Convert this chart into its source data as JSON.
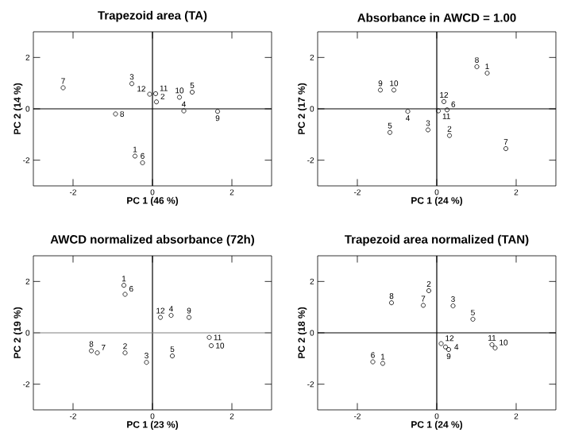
{
  "chart_data": [
    {
      "type": "scatter",
      "title": "Trapezoid area (TA)",
      "xlabel": "PC 1 (46 %)",
      "ylabel": "PC 2 (14 %)",
      "color": "#000000",
      "marker": "circle",
      "xlim": [
        -3,
        3
      ],
      "ylim": [
        -3,
        3
      ],
      "xticks": [
        -2,
        0,
        2
      ],
      "yticks": [
        -2,
        0,
        2
      ],
      "x": [
        -2.25,
        -0.52,
        -0.07,
        0.08,
        0.1,
        0.68,
        1.0,
        0.79,
        1.64,
        -0.93,
        -0.44,
        -0.25
      ],
      "values": [
        0.82,
        0.98,
        0.57,
        0.59,
        0.27,
        0.45,
        0.65,
        -0.08,
        -0.1,
        -0.2,
        -1.84,
        -2.1
      ],
      "ref_lines": [
        {
          "axis": "x",
          "value": 0,
          "color": "#000000"
        },
        {
          "axis": "y",
          "value": 0,
          "color": "#000000"
        }
      ],
      "annotations": [
        {
          "text": "7",
          "x": -2.25,
          "y": 0.82
        },
        {
          "text": "3",
          "x": -0.52,
          "y": 0.98
        },
        {
          "text": "12",
          "x": -0.07,
          "y": 0.57
        },
        {
          "text": "11",
          "x": 0.08,
          "y": 0.59
        },
        {
          "text": "2",
          "x": 0.1,
          "y": 0.27
        },
        {
          "text": "10",
          "x": 0.68,
          "y": 0.45
        },
        {
          "text": "5",
          "x": 1.0,
          "y": 0.65
        },
        {
          "text": "4",
          "x": 0.79,
          "y": -0.08
        },
        {
          "text": "9",
          "x": 1.64,
          "y": -0.1
        },
        {
          "text": "8",
          "x": -0.93,
          "y": -0.2
        },
        {
          "text": "1",
          "x": -0.44,
          "y": -1.84
        },
        {
          "text": "6",
          "x": -0.25,
          "y": -2.1
        }
      ]
    },
    {
      "type": "scatter",
      "title": "Absorbance in AWCD = 1.00",
      "xlabel": "PC 1 (24 %)",
      "ylabel": "PC 2 (17 %)",
      "color": "#000000",
      "marker": "circle",
      "xlim": [
        -3,
        3
      ],
      "ylim": [
        -3,
        3
      ],
      "xticks": [
        -2,
        0,
        2
      ],
      "yticks": [
        -2,
        0,
        2
      ],
      "x": [
        1.01,
        1.27,
        -1.42,
        -1.08,
        -0.73,
        0.18,
        0.04,
        0.26,
        -1.18,
        -0.22,
        0.32,
        1.74
      ],
      "values": [
        1.64,
        1.39,
        0.73,
        0.73,
        -0.1,
        0.28,
        -0.08,
        -0.04,
        -0.92,
        -0.82,
        -1.04,
        -1.55
      ],
      "ref_lines": [
        {
          "axis": "x",
          "value": 0,
          "color": "#000000"
        },
        {
          "axis": "y",
          "value": 0,
          "color": "#000000"
        }
      ],
      "annotations": [
        {
          "text": "8",
          "x": 1.01,
          "y": 1.64
        },
        {
          "text": "1",
          "x": 1.27,
          "y": 1.39
        },
        {
          "text": "9",
          "x": -1.42,
          "y": 0.73
        },
        {
          "text": "10",
          "x": -1.08,
          "y": 0.73
        },
        {
          "text": "4",
          "x": -0.73,
          "y": -0.1
        },
        {
          "text": "12",
          "x": 0.18,
          "y": 0.28
        },
        {
          "text": "11",
          "x": 0.04,
          "y": -0.08
        },
        {
          "text": "6",
          "x": 0.26,
          "y": -0.04
        },
        {
          "text": "5",
          "x": -1.18,
          "y": -0.92
        },
        {
          "text": "3",
          "x": -0.22,
          "y": -0.82
        },
        {
          "text": "2",
          "x": 0.32,
          "y": -1.04
        },
        {
          "text": "7",
          "x": 1.74,
          "y": -1.55
        }
      ]
    },
    {
      "type": "scatter",
      "title": "AWCD normalized absorbance (72h)",
      "xlabel": "PC 1 (23 %)",
      "ylabel": "PC 2 (19 %)",
      "color": "#000000",
      "marker": "circle",
      "xlim": [
        -3,
        3
      ],
      "ylim": [
        -3,
        3
      ],
      "xticks": [
        -2,
        0,
        2
      ],
      "yticks": [
        -2,
        0,
        2
      ],
      "x": [
        -0.72,
        -0.69,
        0.2,
        0.47,
        0.92,
        1.43,
        1.48,
        -1.54,
        -1.39,
        -0.69,
        -0.15,
        0.5
      ],
      "values": [
        1.85,
        1.5,
        0.6,
        0.68,
        0.6,
        -0.18,
        -0.5,
        -0.7,
        -0.78,
        -0.78,
        -1.15,
        -0.9
      ],
      "ref_lines": [
        {
          "axis": "x",
          "value": 0,
          "color": "#000000"
        },
        {
          "axis": "y",
          "value": 0,
          "color": "#808080"
        }
      ],
      "annotations": [
        {
          "text": "1",
          "x": -0.72,
          "y": 1.85
        },
        {
          "text": "6",
          "x": -0.69,
          "y": 1.5
        },
        {
          "text": "12",
          "x": 0.2,
          "y": 0.6
        },
        {
          "text": "4",
          "x": 0.47,
          "y": 0.68
        },
        {
          "text": "9",
          "x": 0.92,
          "y": 0.6
        },
        {
          "text": "11",
          "x": 1.43,
          "y": -0.18
        },
        {
          "text": "10",
          "x": 1.48,
          "y": -0.5
        },
        {
          "text": "8",
          "x": -1.54,
          "y": -0.7
        },
        {
          "text": "7",
          "x": -1.39,
          "y": -0.78
        },
        {
          "text": "2",
          "x": -0.69,
          "y": -0.78
        },
        {
          "text": "3",
          "x": -0.15,
          "y": -1.15
        },
        {
          "text": "5",
          "x": 0.5,
          "y": -0.9
        }
      ]
    },
    {
      "type": "scatter",
      "title": "Trapezoid area normalized (TAN)",
      "xlabel": "PC 1 (24 %)",
      "ylabel": "PC 2 (18 %)",
      "color": "#000000",
      "marker": "circle",
      "xlim": [
        -3,
        3
      ],
      "ylim": [
        -3,
        3
      ],
      "xticks": [
        -2,
        0,
        2
      ],
      "yticks": [
        -2,
        0,
        2
      ],
      "x": [
        -1.14,
        -0.34,
        -0.2,
        0.41,
        0.91,
        -1.61,
        -1.36,
        0.11,
        0.22,
        0.3,
        1.39,
        1.47
      ],
      "values": [
        1.17,
        1.07,
        1.64,
        1.05,
        0.53,
        -1.13,
        -1.19,
        -0.42,
        -0.55,
        -0.65,
        -0.46,
        -0.59
      ],
      "ref_lines": [
        {
          "axis": "x",
          "value": 0,
          "color": "#000000"
        },
        {
          "axis": "y",
          "value": 0,
          "color": "#000000"
        }
      ],
      "annotations": [
        {
          "text": "8",
          "x": -1.14,
          "y": 1.17
        },
        {
          "text": "7",
          "x": -0.34,
          "y": 1.07
        },
        {
          "text": "2",
          "x": -0.2,
          "y": 1.64
        },
        {
          "text": "3",
          "x": 0.41,
          "y": 1.05
        },
        {
          "text": "5",
          "x": 0.91,
          "y": 0.53
        },
        {
          "text": "6",
          "x": -1.61,
          "y": -1.13
        },
        {
          "text": "1",
          "x": -1.36,
          "y": -1.19
        },
        {
          "text": "12",
          "x": 0.11,
          "y": -0.42
        },
        {
          "text": "4",
          "x": 0.22,
          "y": -0.55
        },
        {
          "text": "9",
          "x": 0.3,
          "y": -0.65
        },
        {
          "text": "11",
          "x": 1.39,
          "y": -0.46
        },
        {
          "text": "10",
          "x": 1.47,
          "y": -0.59
        }
      ]
    }
  ]
}
